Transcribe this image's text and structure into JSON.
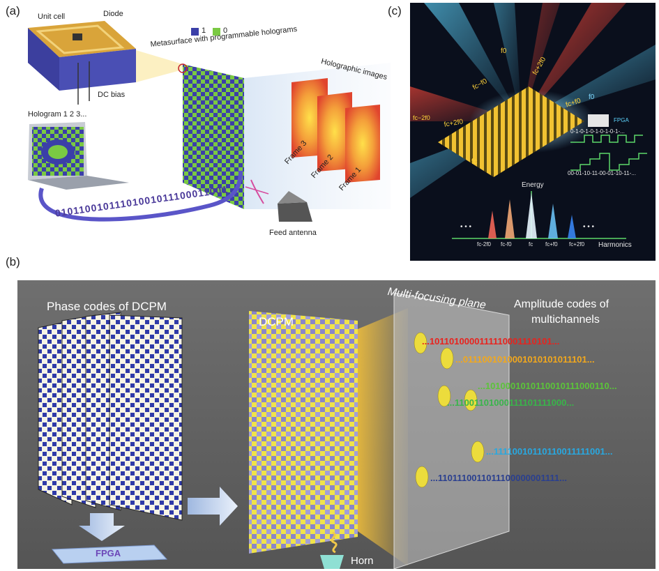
{
  "panel_a": {
    "label": "(a)",
    "unit_cell": "Unit cell",
    "diode": "Diode",
    "dc_bias": "DC bias",
    "hologram": "Hologram 1 2 3...",
    "legend_1": "1",
    "legend_0": "0",
    "metasurface": "Metasurface with programmable holograms",
    "holographic_images": "Holographic images",
    "frame_3": "Frame 3",
    "frame_2": "Frame 2",
    "frame_1": "Frame 1",
    "bitstream": "01011001011101001011100011001",
    "feed_antenna": "Feed antenna",
    "colors": {
      "bit1": "#3b3fa8",
      "bit0": "#7ac943"
    }
  },
  "panel_b": {
    "label": "(b)",
    "phase_codes": "Phase codes of DCPM",
    "fpga": "FPGA",
    "dcpm": "DCPM",
    "multi_focusing": "Multi-focusing plane",
    "amplitude_line1": "Amplitude codes of",
    "amplitude_line2": "multichannels",
    "horn": "Horn",
    "codes": [
      {
        "text": "...1011010000111110001110101...",
        "color": "#e8231e"
      },
      {
        "text": "...0111001010001010101011101...",
        "color": "#f2a81d"
      },
      {
        "text": "...1010001010110010111000110...",
        "color": "#5cc43a"
      },
      {
        "text": "...11001101000111101111000...",
        "color": "#39b54a"
      },
      {
        "text": "...11110010110110011111001...",
        "color": "#29a8e0"
      },
      {
        "text": "...1101110011011100000001111...",
        "color": "#2a3f8f"
      }
    ]
  },
  "panel_c": {
    "label": "(c)",
    "fpga": "FPGA",
    "energy": "Energy",
    "harmonics": "Harmonics",
    "f0_top": "f0",
    "f0_right": "f0",
    "fc_label": "fc",
    "beam_fc_minus_f0": "fc−f0",
    "beam_fc_plus_2f0_top": "fc+2f0",
    "beam_fc_plus_f0": "fc+f0",
    "beam_fc_2f0_left": "fc+2f0",
    "beam_fc_minus_2f0": "fc−2f0",
    "seq1": "0-1-0-1-0-1-0-1-0-1-...",
    "seq2": "00-01-10-11-00-01-10-11-...",
    "dots": "• • •",
    "axis_labels": [
      "fc-2f0",
      "fc-f0",
      "fc",
      "fc+f0",
      "fc+2f0"
    ]
  }
}
